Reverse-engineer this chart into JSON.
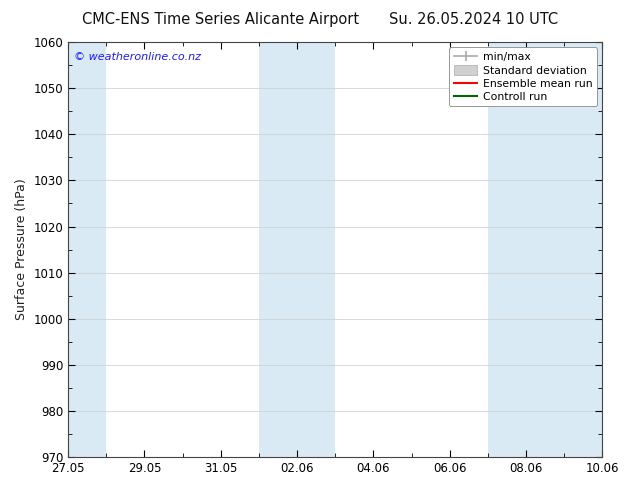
{
  "title_left": "CMC-ENS Time Series Alicante Airport",
  "title_right": "Su. 26.05.2024 10 UTC",
  "ylabel": "Surface Pressure (hPa)",
  "ylim": [
    970,
    1060
  ],
  "yticks": [
    970,
    980,
    990,
    1000,
    1010,
    1020,
    1030,
    1040,
    1050,
    1060
  ],
  "xtick_labels": [
    "27.05",
    "29.05",
    "31.05",
    "02.06",
    "04.06",
    "06.06",
    "08.06",
    "10.06"
  ],
  "xtick_positions": [
    0,
    2,
    4,
    6,
    8,
    10,
    12,
    14
  ],
  "xlim": [
    0,
    14
  ],
  "shaded_bands": [
    {
      "x_start": 0,
      "x_end": 1,
      "color": "#daeaf5"
    },
    {
      "x_start": 5,
      "x_end": 7,
      "color": "#daeaf5"
    },
    {
      "x_start": 11,
      "x_end": 13,
      "color": "#daeaf5"
    },
    {
      "x_start": 13,
      "x_end": 14,
      "color": "#daeaf5"
    }
  ],
  "legend_entries": [
    {
      "label": "min/max",
      "style": "minmax"
    },
    {
      "label": "Standard deviation",
      "style": "band"
    },
    {
      "label": "Ensemble mean run",
      "style": "red_line"
    },
    {
      "label": "Controll run",
      "style": "green_line"
    }
  ],
  "watermark": "© weatheronline.co.nz",
  "watermark_color": "#1a1aff",
  "bg_color": "#ffffff",
  "title_fontsize": 10.5,
  "tick_fontsize": 8.5,
  "ylabel_fontsize": 9
}
